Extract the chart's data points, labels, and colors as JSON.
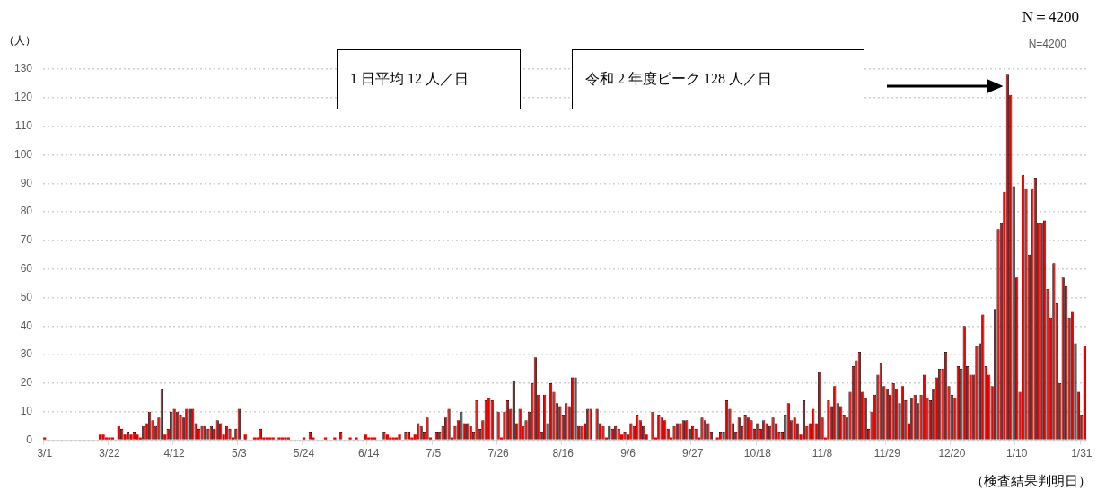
{
  "chart_data": {
    "type": "bar",
    "ylabel": "（人）",
    "xlabel": "（検査結果判明日）",
    "annotations": [
      "1 日平均 12 人／日",
      "令和 2 年度ピーク 128 人／日",
      "N＝4200",
      "N=4200"
    ],
    "categories": [
      "3/1",
      null,
      null,
      null,
      null,
      null,
      null,
      null,
      null,
      null,
      null,
      null,
      null,
      null,
      null,
      null,
      null,
      null,
      null,
      null,
      null,
      "3/22",
      null,
      null,
      null,
      null,
      null,
      null,
      null,
      null,
      null,
      null,
      null,
      null,
      null,
      null,
      null,
      null,
      null,
      null,
      null,
      null,
      "4/12",
      null,
      null,
      null,
      null,
      null,
      null,
      null,
      null,
      null,
      null,
      null,
      null,
      null,
      null,
      null,
      null,
      null,
      null,
      null,
      null,
      "5/3",
      null,
      null,
      null,
      null,
      null,
      null,
      null,
      null,
      null,
      null,
      null,
      null,
      null,
      null,
      null,
      null,
      null,
      null,
      null,
      null,
      "5/24",
      null,
      null,
      null,
      null,
      null,
      null,
      null,
      null,
      null,
      null,
      null,
      null,
      null,
      null,
      null,
      null,
      null,
      null,
      null,
      null,
      "6/14",
      null,
      null,
      null,
      null,
      null,
      null,
      null,
      null,
      null,
      null,
      null,
      null,
      null,
      null,
      null,
      null,
      null,
      null,
      null,
      null,
      "7/5",
      null,
      null,
      null,
      null,
      null,
      null,
      null,
      null,
      null,
      null,
      null,
      null,
      null,
      null,
      null,
      null,
      null,
      null,
      null,
      null,
      "7/26",
      null,
      null,
      null,
      null,
      null,
      null,
      null,
      null,
      null,
      null,
      null,
      null,
      null,
      null,
      null,
      null,
      null,
      null,
      null,
      null,
      "8/16",
      null,
      null,
      null,
      null,
      null,
      null,
      null,
      null,
      null,
      null,
      null,
      null,
      null,
      null,
      null,
      null,
      null,
      null,
      null,
      null,
      "9/6",
      null,
      null,
      null,
      null,
      null,
      null,
      null,
      null,
      null,
      null,
      null,
      null,
      null,
      null,
      null,
      null,
      null,
      null,
      null,
      null,
      "9/27",
      null,
      null,
      null,
      null,
      null,
      null,
      null,
      null,
      null,
      null,
      null,
      null,
      null,
      null,
      null,
      null,
      null,
      null,
      null,
      null,
      "10/18",
      null,
      null,
      null,
      null,
      null,
      null,
      null,
      null,
      null,
      null,
      null,
      null,
      null,
      null,
      null,
      null,
      null,
      null,
      null,
      null,
      "11/8",
      null,
      null,
      null,
      null,
      null,
      null,
      null,
      null,
      null,
      null,
      null,
      null,
      null,
      null,
      null,
      null,
      null,
      null,
      null,
      null,
      "11/29",
      null,
      null,
      null,
      null,
      null,
      null,
      null,
      null,
      null,
      null,
      null,
      null,
      null,
      null,
      null,
      null,
      null,
      null,
      null,
      null,
      "12/20",
      null,
      null,
      null,
      null,
      null,
      null,
      null,
      null,
      null,
      null,
      null,
      null,
      null,
      null,
      null,
      null,
      null,
      null,
      null,
      null,
      "1/10",
      null,
      null,
      null,
      null,
      null,
      null,
      null,
      null,
      null,
      null,
      null,
      null,
      null,
      null,
      null,
      null,
      null,
      null,
      null,
      null,
      "1/31",
      null
    ],
    "values": [
      1,
      0,
      0,
      0,
      0,
      0,
      0,
      0,
      0,
      0,
      0,
      0,
      0,
      0,
      0,
      0,
      0,
      0,
      2,
      2,
      1,
      1,
      1,
      0,
      5,
      4,
      2,
      3,
      2,
      3,
      2,
      1,
      5,
      6,
      10,
      7,
      5,
      8,
      18,
      2,
      4,
      10,
      11,
      10,
      9,
      8,
      11,
      11,
      11,
      6,
      4,
      5,
      5,
      4,
      5,
      4,
      7,
      6,
      2,
      5,
      4,
      1,
      4,
      11,
      0,
      2,
      0,
      0,
      1,
      1,
      4,
      1,
      1,
      1,
      1,
      0,
      1,
      1,
      1,
      1,
      0,
      0,
      0,
      0,
      1,
      0,
      3,
      1,
      0,
      0,
      0,
      1,
      0,
      0,
      1,
      0,
      3,
      0,
      0,
      1,
      0,
      1,
      0,
      0,
      2,
      1,
      1,
      1,
      0,
      0,
      3,
      2,
      1,
      1,
      1,
      2,
      0,
      3,
      3,
      1,
      2,
      6,
      5,
      3,
      8,
      1,
      0,
      3,
      3,
      5,
      8,
      11,
      1,
      5,
      7,
      10,
      6,
      6,
      5,
      3,
      14,
      4,
      7,
      14,
      15,
      14,
      0,
      10,
      1,
      10,
      14,
      11,
      21,
      6,
      11,
      5,
      7,
      10,
      20,
      29,
      16,
      3,
      16,
      6,
      20,
      17,
      13,
      12,
      9,
      13,
      12,
      22,
      22,
      5,
      5,
      6,
      11,
      11,
      0,
      11,
      6,
      5,
      1,
      5,
      4,
      5,
      4,
      2,
      3,
      2,
      6,
      5,
      9,
      7,
      5,
      2,
      0,
      10,
      1,
      9,
      8,
      7,
      4,
      1,
      5,
      6,
      6,
      7,
      7,
      4,
      5,
      4,
      1,
      8,
      7,
      6,
      3,
      0,
      1,
      3,
      3,
      14,
      11,
      6,
      3,
      8,
      5,
      9,
      8,
      7,
      4,
      6,
      4,
      7,
      6,
      5,
      8,
      6,
      3,
      3,
      9,
      13,
      7,
      8,
      6,
      2,
      14,
      5,
      6,
      11,
      6,
      24,
      8,
      1,
      14,
      12,
      19,
      13,
      12,
      9,
      8,
      17,
      26,
      28,
      31,
      17,
      15,
      4,
      10,
      16,
      23,
      27,
      19,
      18,
      16,
      20,
      18,
      13,
      19,
      14,
      6,
      15,
      16,
      13,
      16,
      23,
      15,
      14,
      18,
      22,
      25,
      25,
      31,
      19,
      16,
      15,
      26,
      25,
      40,
      26,
      23,
      23,
      33,
      34,
      44,
      26,
      23,
      19,
      46,
      74,
      76,
      87,
      128,
      121,
      89,
      57,
      17,
      93,
      88,
      65,
      88,
      92,
      76,
      76,
      77,
      53,
      43,
      62,
      48,
      20,
      57,
      54,
      43,
      45,
      34,
      17,
      9,
      33
    ],
    "color": "#e60000",
    "ylim": [
      0,
      130
    ],
    "yticks": [
      0,
      10,
      20,
      30,
      40,
      50,
      60,
      70,
      80,
      90,
      100,
      110,
      120,
      130
    ],
    "grid": "y",
    "legend": false
  }
}
